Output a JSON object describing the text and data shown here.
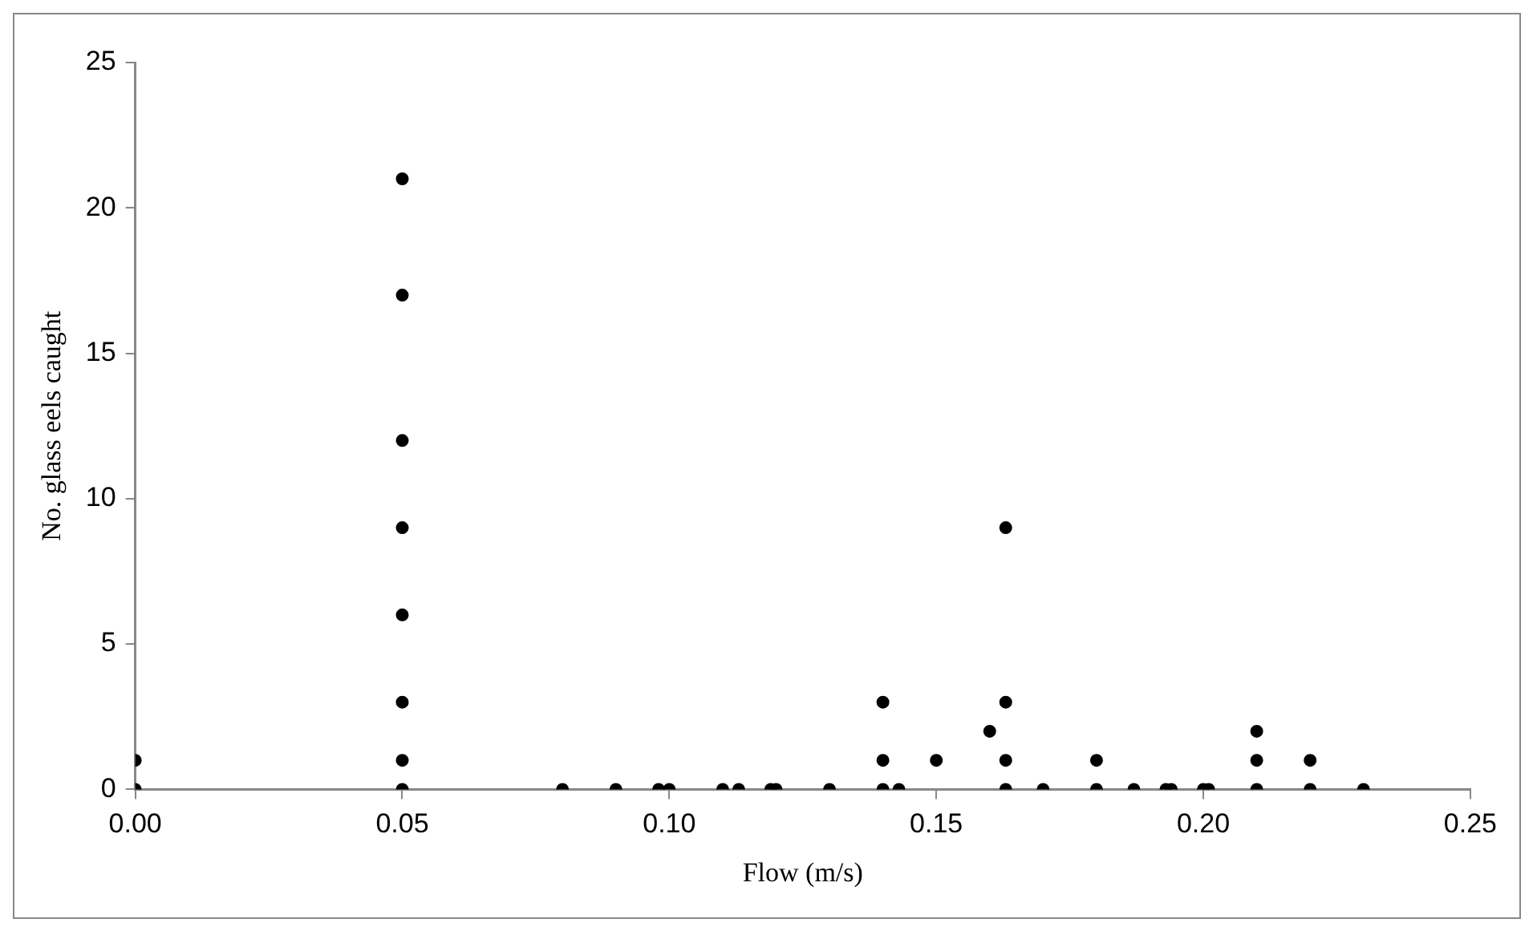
{
  "chart_data": {
    "type": "scatter",
    "xlabel": "Flow (m/s)",
    "ylabel": "No. glass eels caught",
    "x": [
      0,
      0,
      0.05,
      0.05,
      0.05,
      0.05,
      0.05,
      0.05,
      0.05,
      0.05,
      0.08,
      0.09,
      0.098,
      0.1,
      0.11,
      0.113,
      0.119,
      0.12,
      0.13,
      0.14,
      0.14,
      0.14,
      0.143,
      0.15,
      0.16,
      0.163,
      0.163,
      0.163,
      0.163,
      0.17,
      0.18,
      0.18,
      0.187,
      0.193,
      0.194,
      0.2,
      0.201,
      0.21,
      0.21,
      0.21,
      0.22,
      0.22,
      0.23
    ],
    "values": [
      0,
      1,
      0,
      1,
      3,
      6,
      9,
      12,
      17,
      21,
      0,
      0,
      0,
      0,
      0,
      0,
      0,
      0,
      0,
      0,
      1,
      3,
      0,
      1,
      2,
      0,
      1,
      3,
      9,
      0,
      0,
      1,
      0,
      0,
      0,
      0,
      0,
      0,
      1,
      2,
      0,
      1,
      0
    ],
    "color": "#000000",
    "marker": "circle",
    "grid": false,
    "xlim": [
      0,
      0.25
    ],
    "xticks": [
      {
        "value": 0,
        "label": "0.00"
      },
      {
        "value": 0.05,
        "label": "0.05"
      },
      {
        "value": 0.1,
        "label": "0.10"
      },
      {
        "value": 0.15,
        "label": "0.15"
      },
      {
        "value": 0.2,
        "label": "0.20"
      },
      {
        "value": 0.25,
        "label": "0.25"
      }
    ],
    "ylim": [
      0,
      25
    ],
    "yticks": [
      0,
      5,
      10,
      15,
      20,
      25
    ]
  }
}
